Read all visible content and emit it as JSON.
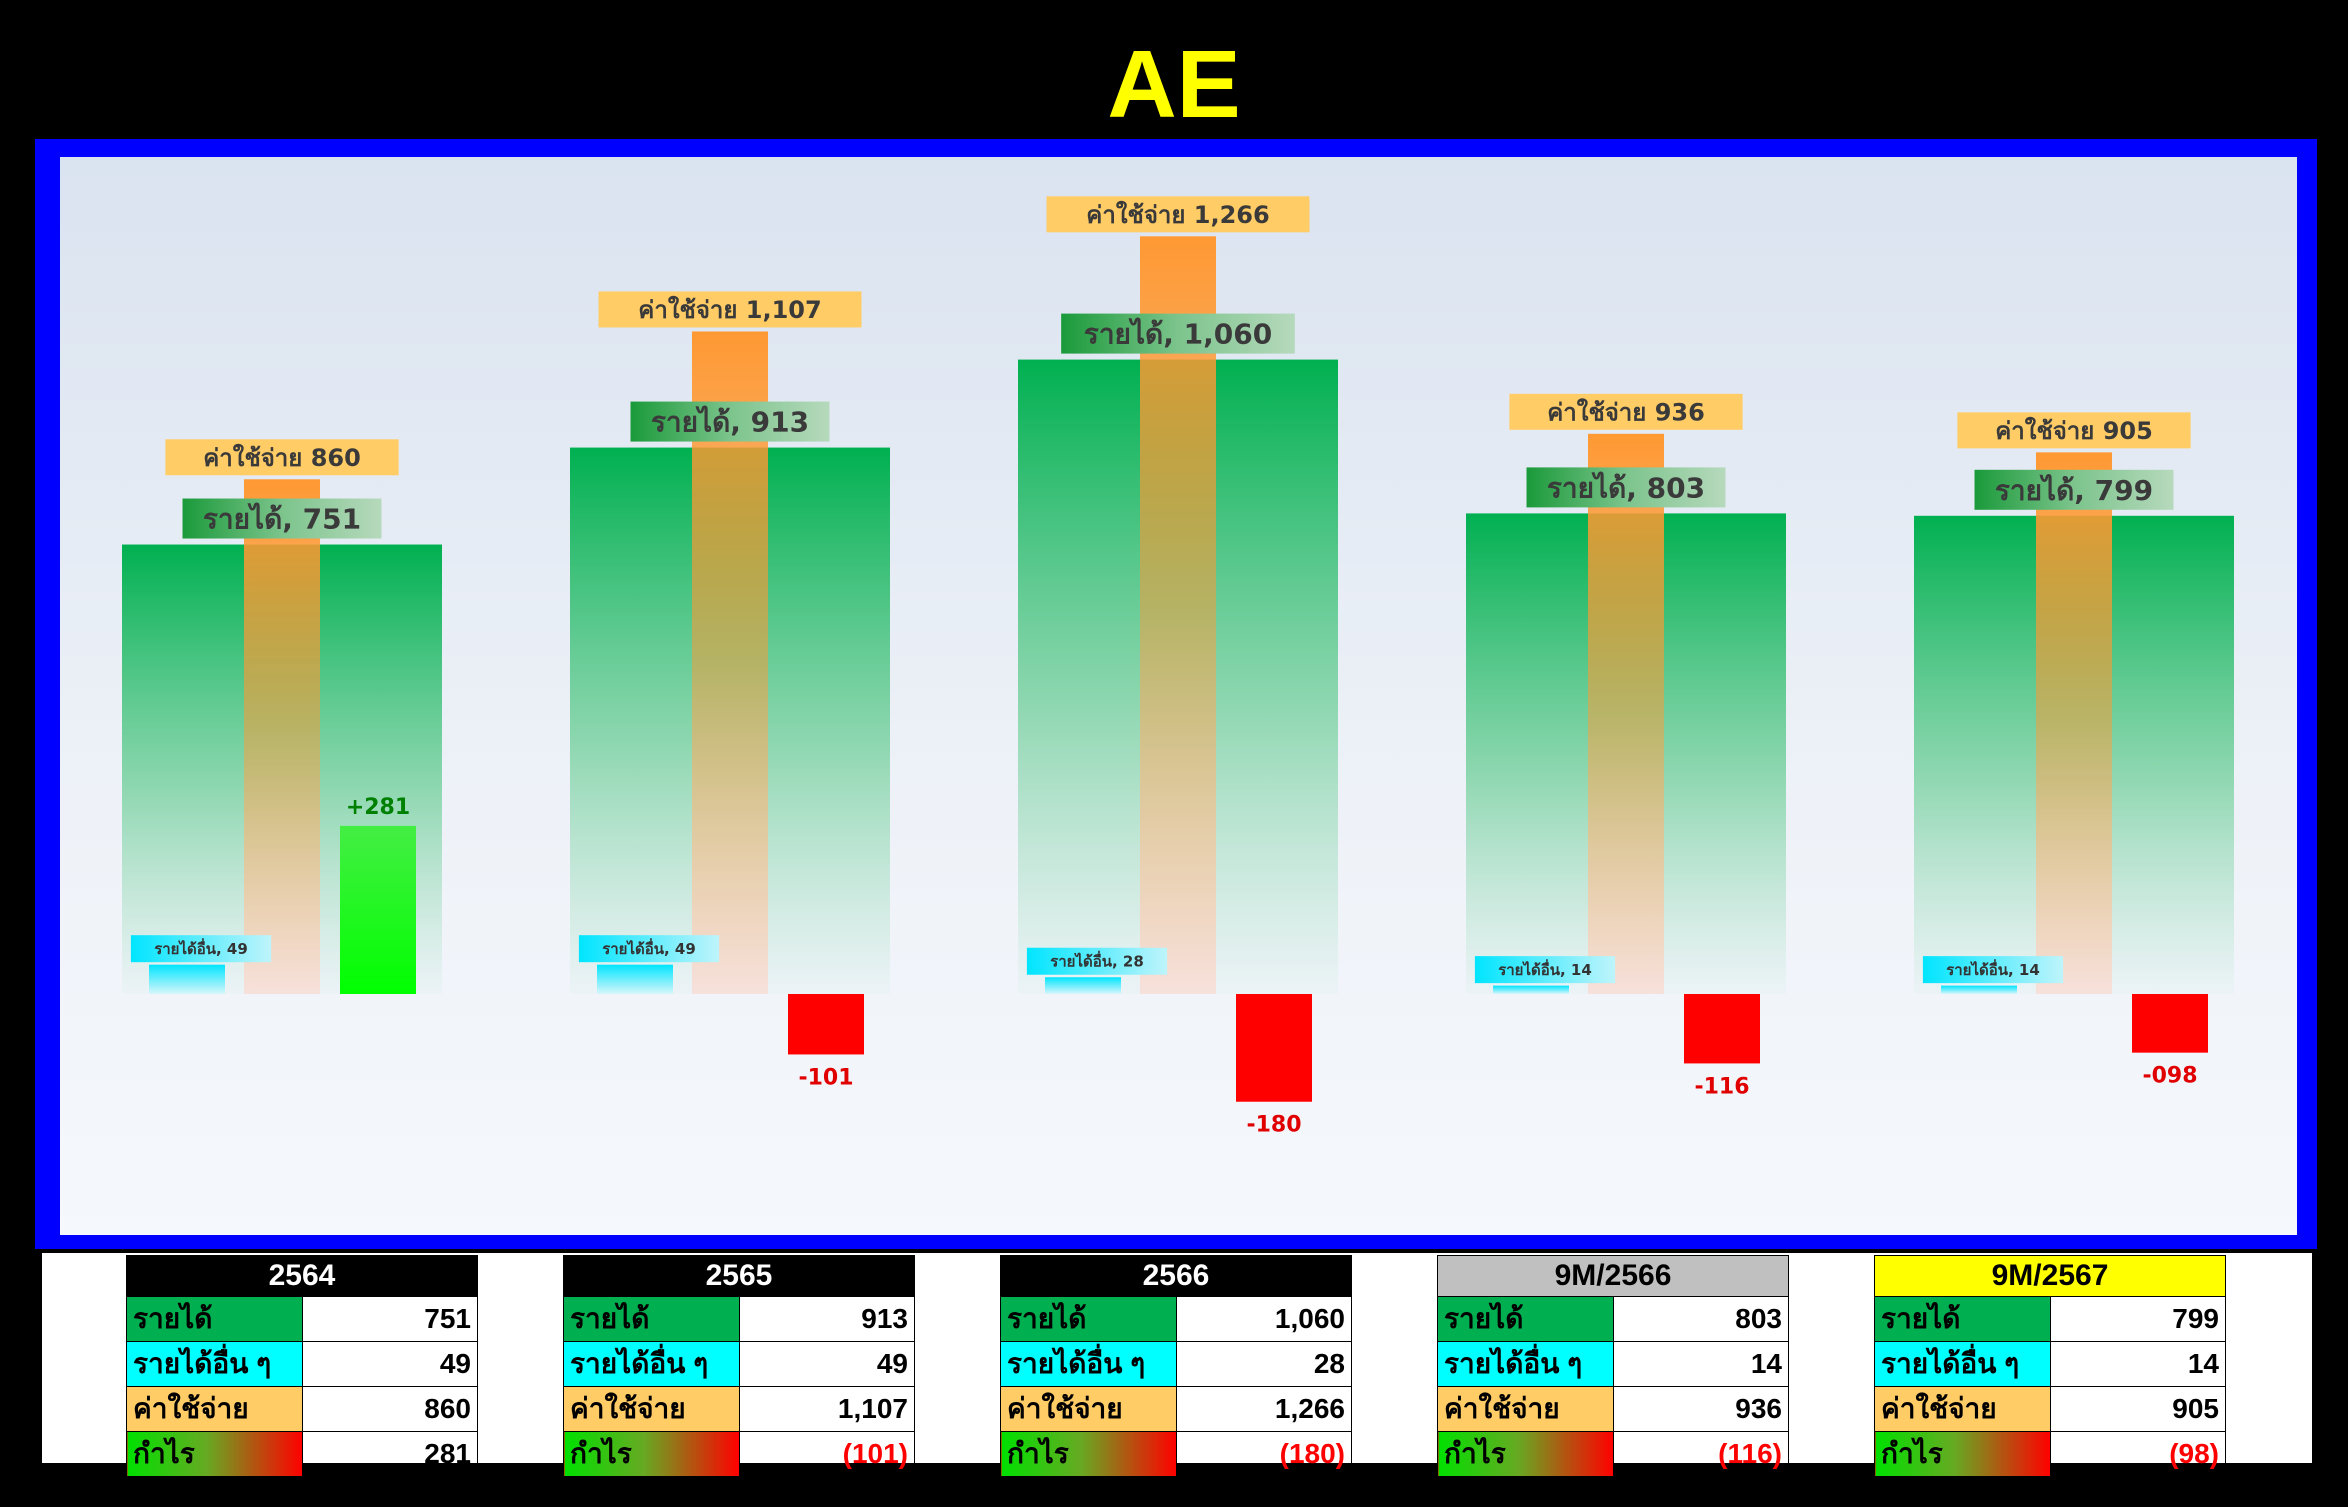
{
  "title": "AE",
  "colors": {
    "background": "#000000",
    "title": "#ffff00",
    "frame": "#0000ff",
    "revenue": "#00b050",
    "other_income": "#00ffff",
    "expense": "#ff9933",
    "profit_positive": "#00ff00",
    "profit_negative": "#ff0000"
  },
  "chart_data": {
    "type": "bar",
    "categories": [
      "2564",
      "2565",
      "2566",
      "9M/2566",
      "9M/2567"
    ],
    "series": [
      {
        "name": "รายได้",
        "values": [
          751,
          913,
          1060,
          803,
          799
        ]
      },
      {
        "name": "รายได้อื่น",
        "values": [
          49,
          49,
          28,
          14,
          14
        ]
      },
      {
        "name": "ค่าใช้จ่าย",
        "values": [
          860,
          1107,
          1266,
          936,
          905
        ]
      },
      {
        "name": "กำไร",
        "values": [
          281,
          -101,
          -180,
          -116,
          -98
        ]
      }
    ],
    "data_labels": {
      "revenue": [
        "รายได้, 751",
        "รายได้, 913",
        "รายได้, 1,060",
        "รายได้, 803",
        "รายได้, 799"
      ],
      "other": [
        "รายได้อื่น, 49",
        "รายได้อื่น, 49",
        "รายได้อื่น, 28",
        "รายได้อื่น, 14",
        "รายได้อื่น, 14"
      ],
      "expense": [
        "ค่าใช้จ่าย  860",
        "ค่าใช้จ่าย  1,107",
        "ค่าใช้จ่าย  1,266",
        "ค่าใช้จ่าย  936",
        "ค่าใช้จ่าย  905"
      ],
      "profit": [
        "+281",
        "-101",
        "-180",
        "-116",
        "-098"
      ]
    },
    "ylim": [
      -250,
      1400
    ],
    "grid": false,
    "legend": "none"
  },
  "tables": [
    {
      "header": "2564",
      "header_bg": "#000000",
      "header_color": "#ffffff",
      "rows": [
        {
          "label": "รายได้",
          "value": "751",
          "label_bg": "#00b050"
        },
        {
          "label": "รายได้อื่น ๆ",
          "value": "49",
          "label_bg": "#00ffff"
        },
        {
          "label": "ค่าใช้จ่าย",
          "value": "860",
          "label_bg": "#ffcc66"
        },
        {
          "label": "กำไร",
          "value": "281",
          "label_bg": "grad",
          "negative": false
        }
      ]
    },
    {
      "header": "2565",
      "header_bg": "#000000",
      "header_color": "#ffffff",
      "rows": [
        {
          "label": "รายได้",
          "value": "913",
          "label_bg": "#00b050"
        },
        {
          "label": "รายได้อื่น ๆ",
          "value": "49",
          "label_bg": "#00ffff"
        },
        {
          "label": "ค่าใช้จ่าย",
          "value": "1,107",
          "label_bg": "#ffcc66"
        },
        {
          "label": "กำไร",
          "value": "(101)",
          "label_bg": "grad",
          "negative": true
        }
      ]
    },
    {
      "header": "2566",
      "header_bg": "#000000",
      "header_color": "#ffffff",
      "rows": [
        {
          "label": "รายได้",
          "value": "1,060",
          "label_bg": "#00b050"
        },
        {
          "label": "รายได้อื่น ๆ",
          "value": "28",
          "label_bg": "#00ffff"
        },
        {
          "label": "ค่าใช้จ่าย",
          "value": "1,266",
          "label_bg": "#ffcc66"
        },
        {
          "label": "กำไร",
          "value": "(180)",
          "label_bg": "grad",
          "negative": true
        }
      ]
    },
    {
      "header": "9M/2566",
      "header_bg": "#c0c0c0",
      "header_color": "#000000",
      "rows": [
        {
          "label": "รายได้",
          "value": "803",
          "label_bg": "#00b050"
        },
        {
          "label": "รายได้อื่น ๆ",
          "value": "14",
          "label_bg": "#00ffff"
        },
        {
          "label": "ค่าใช้จ่าย",
          "value": "936",
          "label_bg": "#ffcc66"
        },
        {
          "label": "กำไร",
          "value": "(116)",
          "label_bg": "grad",
          "negative": true
        }
      ]
    },
    {
      "header": "9M/2567",
      "header_bg": "#ffff00",
      "header_color": "#000000",
      "rows": [
        {
          "label": "รายได้",
          "value": "799",
          "label_bg": "#00b050"
        },
        {
          "label": "รายได้อื่น ๆ",
          "value": "14",
          "label_bg": "#00ffff"
        },
        {
          "label": "ค่าใช้จ่าย",
          "value": "905",
          "label_bg": "#ffcc66"
        },
        {
          "label": "กำไร",
          "value": "(98)",
          "label_bg": "grad",
          "negative": true
        }
      ]
    }
  ]
}
